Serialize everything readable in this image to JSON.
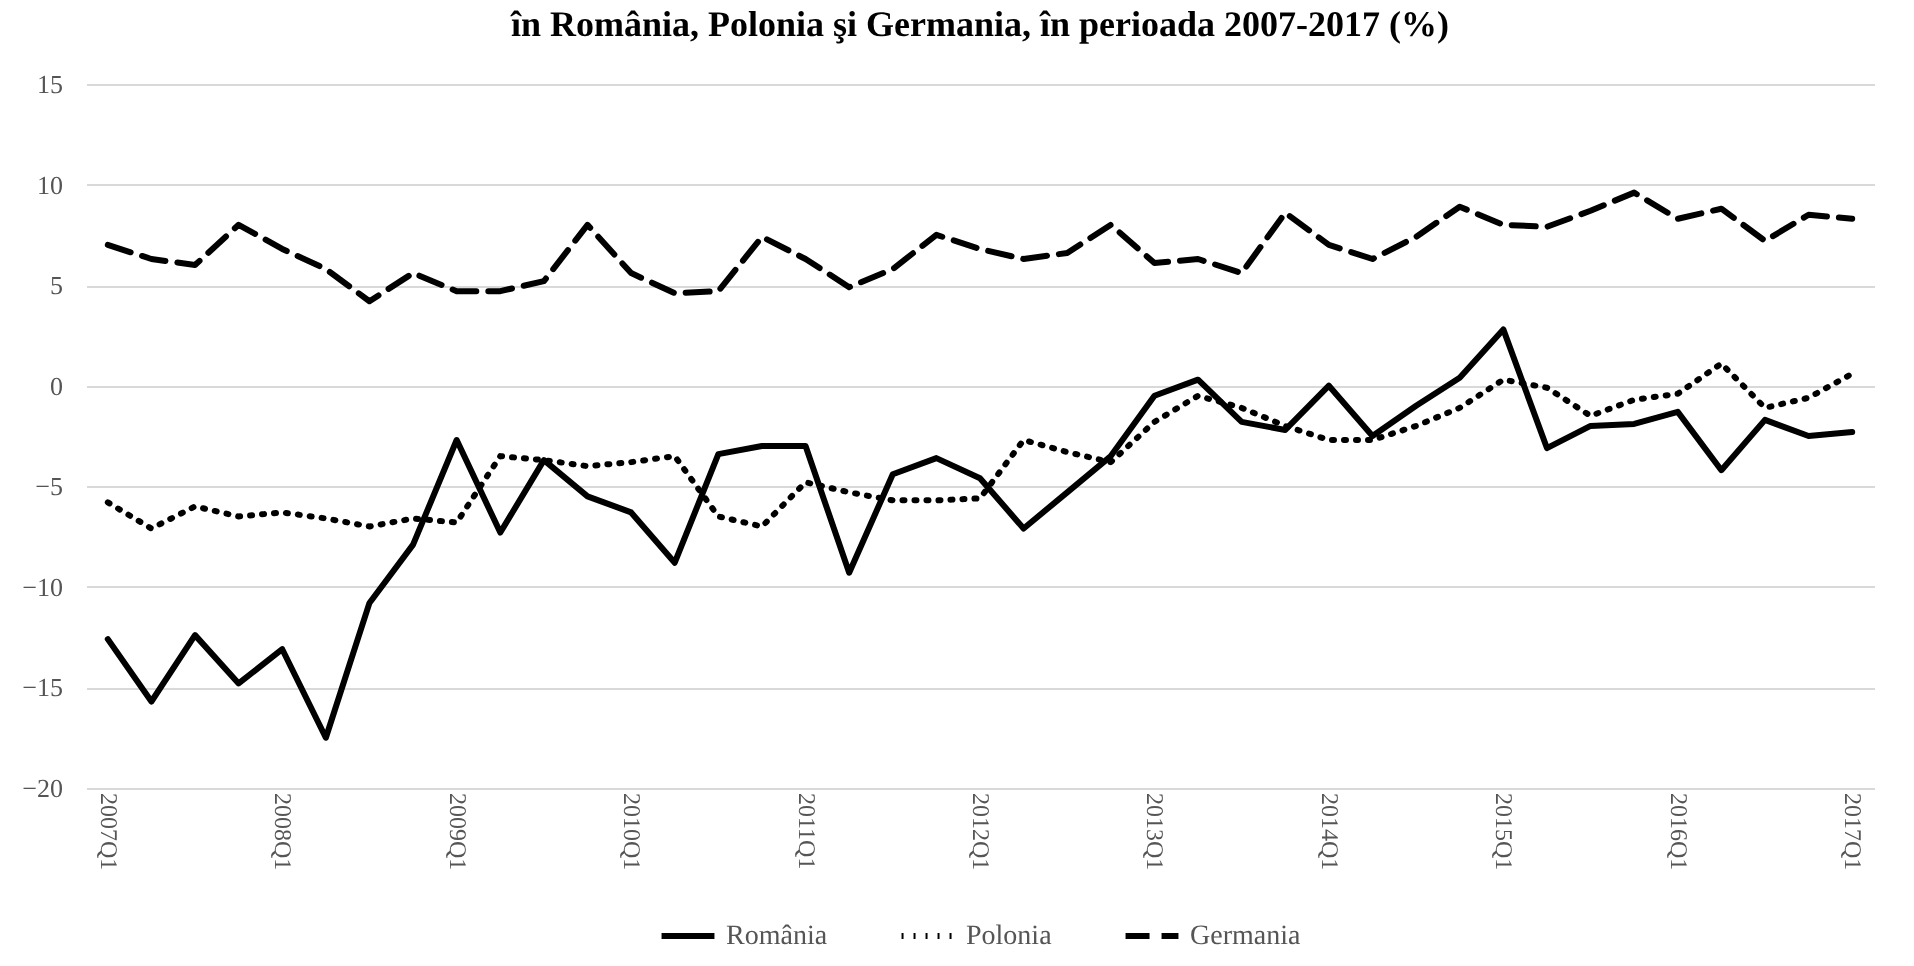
{
  "chart_data": {
    "type": "line",
    "title": "în România, Polonia şi Germania, în perioada 2007-2017 (%)",
    "categories": [
      "2007Q1",
      null,
      null,
      null,
      "2008Q1",
      null,
      null,
      null,
      "2009Q1",
      null,
      null,
      null,
      "2010Q1",
      null,
      null,
      null,
      "2011Q1",
      null,
      null,
      null,
      "2012Q1",
      null,
      null,
      null,
      "2013Q1",
      null,
      null,
      null,
      "2014Q1",
      null,
      null,
      null,
      "2015Q1",
      null,
      null,
      null,
      "2016Q1",
      null,
      null,
      null,
      "2017Q1"
    ],
    "series": [
      {
        "name": "România",
        "color": "#000000",
        "line_style": "solid",
        "values": [
          -12.6,
          -15.7,
          -12.4,
          -14.8,
          -13.1,
          -17.5,
          -10.8,
          -7.9,
          -2.7,
          -7.3,
          -3.7,
          -5.5,
          -6.3,
          -8.8,
          -3.4,
          -3.0,
          -3.0,
          -9.3,
          -4.4,
          -3.6,
          -4.6,
          -7.1,
          -5.3,
          -3.5,
          -0.5,
          0.3,
          -1.8,
          -2.2,
          0,
          -2.5,
          -1.0,
          0.4,
          2.8,
          -3.1,
          -2.0,
          -1.9,
          -1.3,
          -4.2,
          -1.7,
          -2.5,
          -2.3
        ]
      },
      {
        "name": "Polonia",
        "color": "#000000",
        "line_style": "dotted",
        "values": [
          -5.8,
          -7.1,
          -6.0,
          -6.5,
          -6.3,
          -6.6,
          -7.0,
          -6.6,
          -6.8,
          -3.5,
          -3.7,
          -4.0,
          -3.8,
          -3.5,
          -6.5,
          -7.0,
          -4.8,
          -5.3,
          -5.7,
          -5.7,
          -5.6,
          -2.7,
          -3.3,
          -3.8,
          -1.8,
          -0.5,
          -1.1,
          -2.0,
          -2.7,
          -2.7,
          -2.0,
          -1.1,
          0.3,
          -0.1,
          -1.5,
          -0.7,
          -0.4,
          1.1,
          -1.1,
          -0.6,
          0.6
        ]
      },
      {
        "name": "Germania",
        "color": "#000000",
        "line_style": "dashed",
        "values": [
          7.0,
          6.3,
          6.0,
          8.0,
          6.8,
          5.8,
          4.2,
          5.6,
          4.7,
          4.7,
          5.2,
          8.0,
          5.6,
          4.6,
          4.7,
          7.4,
          6.3,
          4.9,
          5.8,
          7.5,
          6.8,
          6.3,
          6.6,
          8.0,
          6.1,
          6.3,
          5.6,
          8.6,
          7.0,
          6.3,
          7.4,
          8.9,
          8.0,
          7.9,
          8.7,
          9.6,
          8.3,
          8.8,
          7.2,
          8.5,
          8.3
        ]
      }
    ],
    "ylim": [
      -20,
      15
    ],
    "yticks": [
      -20,
      -15,
      -10,
      -5,
      0,
      5,
      10,
      15
    ],
    "grid": "y",
    "legend": "bottom"
  }
}
